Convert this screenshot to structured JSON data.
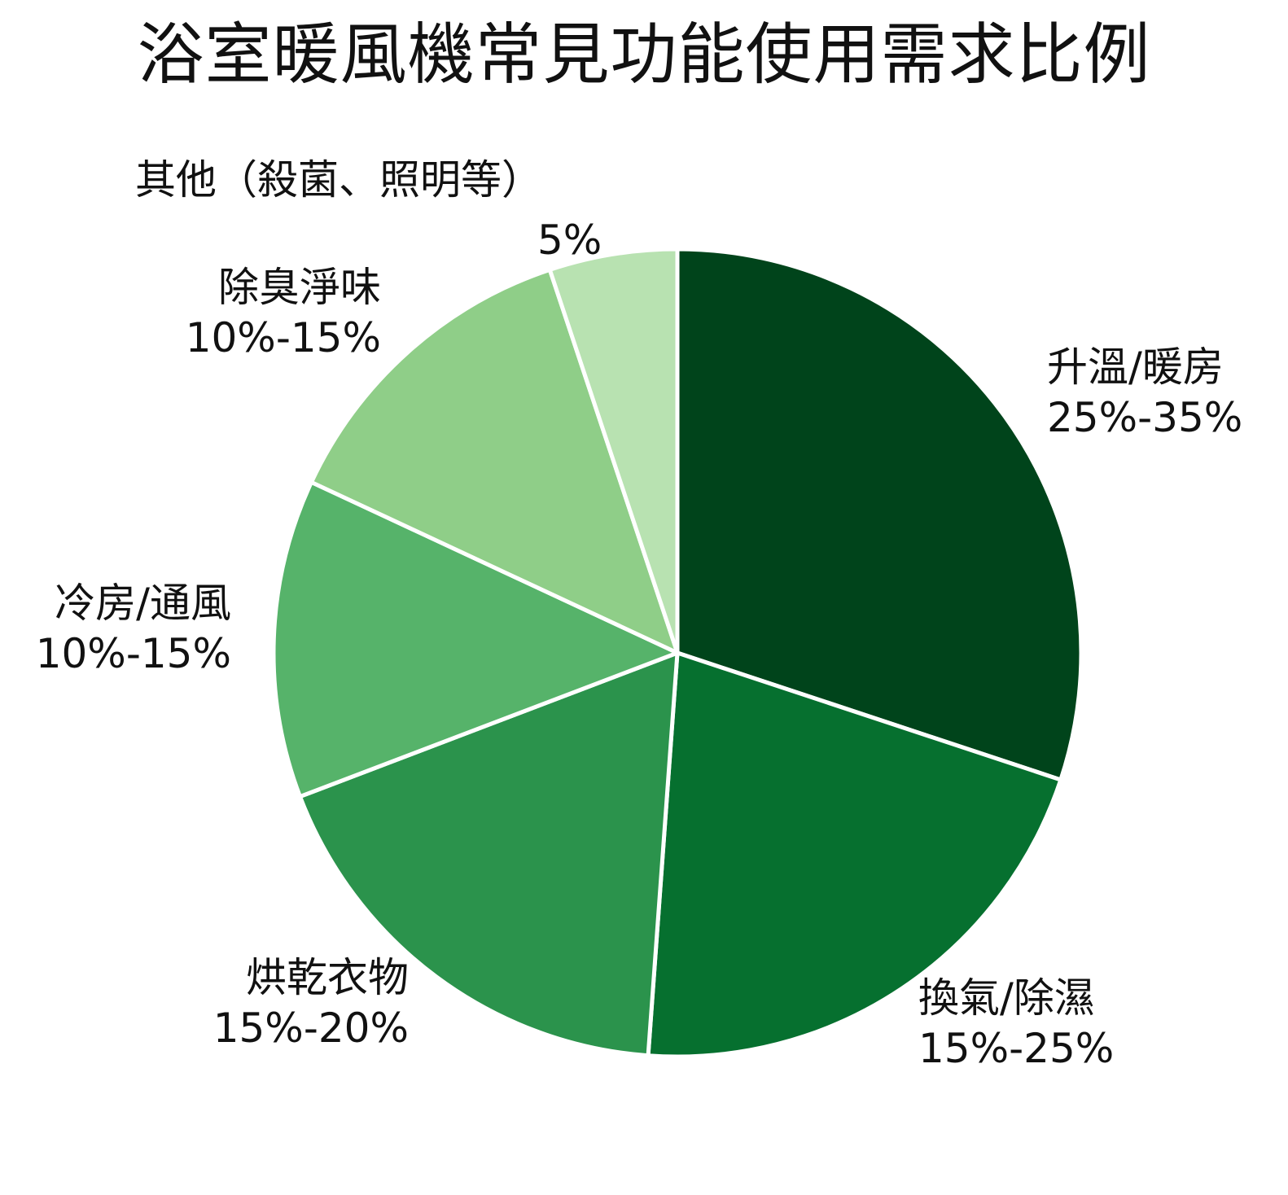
{
  "title": "浴室暖風機常見功能使用需求比例",
  "chart_data": {
    "type": "pie",
    "title": "浴室暖風機常見功能使用需求比例",
    "start_angle_deg": 0,
    "direction": "clockwise",
    "categories": [
      "升溫/暖房",
      "換氣/除濕",
      "烘乾衣物",
      "冷房/通風",
      "除臭淨味",
      "其他（殺菌、照明等）"
    ],
    "value_labels": [
      "25%-35%",
      "15%-25%",
      "15%-20%",
      "10%-15%",
      "10%-15%",
      "5%"
    ],
    "values": [
      30,
      21,
      18,
      12.7,
      12.9,
      5.1
    ],
    "colors": [
      "#00441b",
      "#06702f",
      "#2b934c",
      "#56b36a",
      "#8fce88",
      "#b8e2b1"
    ],
    "slice_border_color": "#ffffff",
    "legend": "none (direct labels)"
  },
  "labels": [
    {
      "name": "升溫/暖房",
      "value": "25%-35%"
    },
    {
      "name": "換氣/除濕",
      "value": "15%-25%"
    },
    {
      "name": "烘乾衣物",
      "value": "15%-20%"
    },
    {
      "name": "冷房/通風",
      "value": "10%-15%"
    },
    {
      "name": "除臭淨味",
      "value": "10%-15%"
    },
    {
      "name": "其他（殺菌、照明等）",
      "value": "5%"
    }
  ]
}
